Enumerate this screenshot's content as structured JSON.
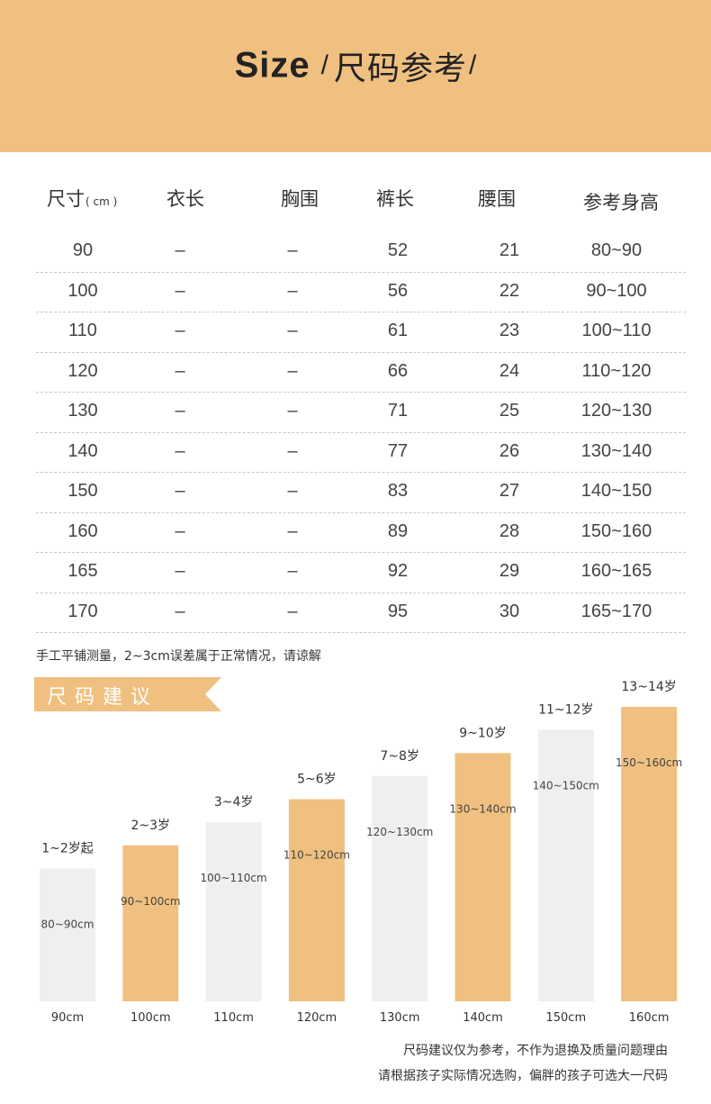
{
  "header": {
    "title_en": "Size",
    "slash": "/",
    "title_zh": "尺码参考",
    "slash_end": "/"
  },
  "table": {
    "columns": [
      {
        "label": "尺寸",
        "unit": "( cm )"
      },
      {
        "label": "衣长"
      },
      {
        "label": "胸围"
      },
      {
        "label": "裤长"
      },
      {
        "label": "腰围"
      },
      {
        "label": "参考身高"
      }
    ],
    "rows": [
      [
        "90",
        "–",
        "–",
        "52",
        "21",
        "80~90"
      ],
      [
        "100",
        "–",
        "–",
        "56",
        "22",
        "90~100"
      ],
      [
        "110",
        "–",
        "–",
        "61",
        "23",
        "100~110"
      ],
      [
        "120",
        "–",
        "–",
        "66",
        "24",
        "110~120"
      ],
      [
        "130",
        "–",
        "–",
        "71",
        "25",
        "120~130"
      ],
      [
        "140",
        "–",
        "–",
        "77",
        "26",
        "130~140"
      ],
      [
        "150",
        "–",
        "–",
        "83",
        "27",
        "140~150"
      ],
      [
        "160",
        "–",
        "–",
        "89",
        "28",
        "150~160"
      ],
      [
        "165",
        "–",
        "–",
        "92",
        "29",
        "160~165"
      ],
      [
        "170",
        "–",
        "–",
        "95",
        "30",
        "165~170"
      ]
    ]
  },
  "note": "手工平铺测量，2~3cm误差属于正常情况，请谅解",
  "section_title": "尺码建议",
  "chart_data": {
    "type": "bar",
    "categories": [
      "90cm",
      "100cm",
      "110cm",
      "120cm",
      "130cm",
      "140cm",
      "150cm",
      "160cm"
    ],
    "values": [
      90,
      100,
      110,
      120,
      130,
      140,
      150,
      160
    ],
    "age_labels": [
      "1~2岁起",
      "2~3岁",
      "3~4岁",
      "5~6岁",
      "7~8岁",
      "9~10岁",
      "11~12岁",
      "13~14岁"
    ],
    "bar_labels": [
      "80~90cm",
      "90~100cm",
      "100~110cm",
      "110~120cm",
      "120~130cm",
      "130~140cm",
      "140~150cm",
      "150~160cm"
    ],
    "colors": [
      "#efefef",
      "#f0c080",
      "#efefef",
      "#f0c080",
      "#efefef",
      "#f0c080",
      "#efefef",
      "#f0c080"
    ]
  },
  "footer": {
    "line1": "尺码建议仅为参考，不作为退换及质量问题理由",
    "line2": "请根据孩子实际情况选购，偏胖的孩子可选大一尺码"
  },
  "colors": {
    "accent": "#f0c080",
    "light_bar": "#efefef"
  }
}
